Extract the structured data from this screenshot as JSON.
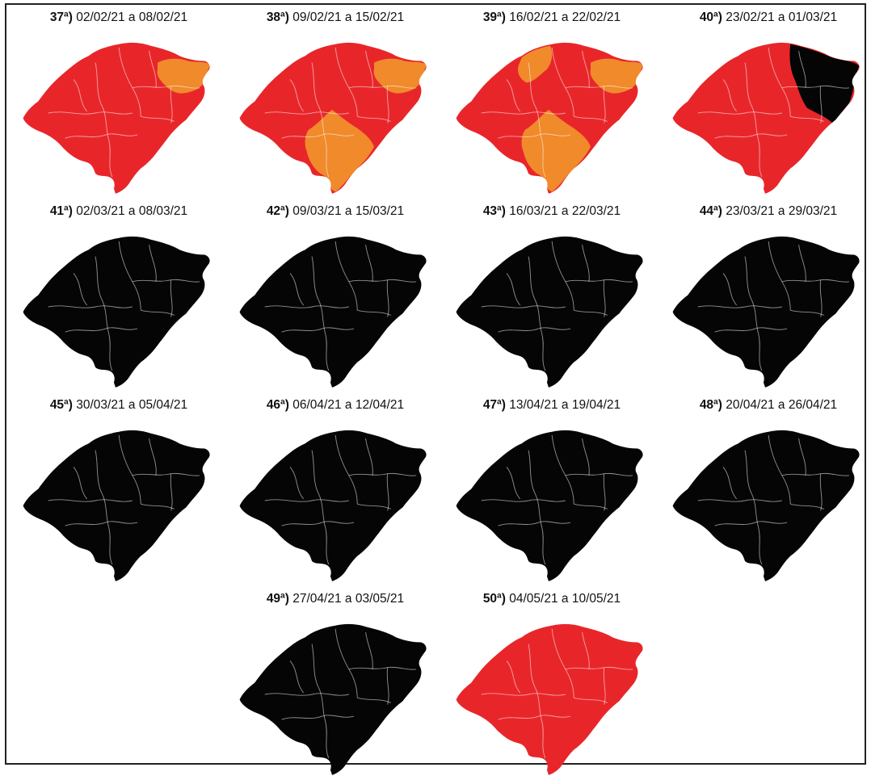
{
  "colors": {
    "red": "#e8262a",
    "orange": "#f08a2b",
    "black": "#050505",
    "water": "#ffffff"
  },
  "panels": [
    {
      "week": "37ª)",
      "range": " 02/02/21 a 08/02/21",
      "base": "red",
      "overlays": [
        {
          "shape": "ne",
          "color": "orange"
        }
      ]
    },
    {
      "week": "38ª)",
      "range": " 09/02/21 a 15/02/21",
      "base": "red",
      "overlays": [
        {
          "shape": "ne",
          "color": "orange"
        },
        {
          "shape": "south",
          "color": "orange"
        }
      ]
    },
    {
      "week": "39ª)",
      "range": " 16/02/21 a 22/02/21",
      "base": "red",
      "overlays": [
        {
          "shape": "north",
          "color": "orange"
        },
        {
          "shape": "ne",
          "color": "orange"
        },
        {
          "shape": "south",
          "color": "orange"
        }
      ]
    },
    {
      "week": "40ª)",
      "range": " 23/02/21 a 01/03/21",
      "base": "red",
      "overlays": [
        {
          "shape": "east",
          "color": "black"
        }
      ]
    },
    {
      "week": "41ª)",
      "range": " 02/03/21 a 08/03/21",
      "base": "black",
      "overlays": []
    },
    {
      "week": "42ª)",
      "range": " 09/03/21 a 15/03/21",
      "base": "black",
      "overlays": []
    },
    {
      "week": "43ª)",
      "range": " 16/03/21 a 22/03/21",
      "base": "black",
      "overlays": []
    },
    {
      "week": "44ª)",
      "range": " 23/03/21 a 29/03/21",
      "base": "black",
      "overlays": []
    },
    {
      "week": "45ª)",
      "range": " 30/03/21 a 05/04/21",
      "base": "black",
      "overlays": []
    },
    {
      "week": "46ª)",
      "range": " 06/04/21 a 12/04/21",
      "base": "black",
      "overlays": []
    },
    {
      "week": "47ª)",
      "range": " 13/04/21 a 19/04/21",
      "base": "black",
      "overlays": []
    },
    {
      "week": "48ª)",
      "range": " 20/04/21 a 26/04/21",
      "base": "black",
      "overlays": []
    },
    {
      "week": "49ª)",
      "range": " 27/04/21 a 03/05/21",
      "base": "black",
      "overlays": []
    },
    {
      "week": "50ª)",
      "range": " 04/05/21 a 10/05/21",
      "base": "red",
      "overlays": []
    }
  ]
}
